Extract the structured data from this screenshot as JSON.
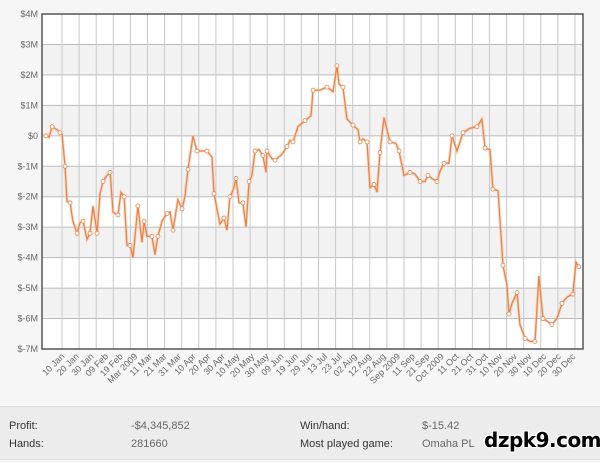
{
  "chart_data": {
    "type": "line",
    "title": "",
    "xlabel": "",
    "ylabel": "",
    "x_units": "date tick index (0 = 10 Jan)",
    "xlim": [
      -1.17,
      30.47
    ],
    "ylim": [
      -7,
      4
    ],
    "y_ticks": [
      {
        "value": 4,
        "label": "$4M"
      },
      {
        "value": 3,
        "label": "$3M"
      },
      {
        "value": 2,
        "label": "$2M"
      },
      {
        "value": 1,
        "label": "$1M"
      },
      {
        "value": 0,
        "label": "$0"
      },
      {
        "value": -1,
        "label": "$-1M"
      },
      {
        "value": -2,
        "label": "$-2M"
      },
      {
        "value": -3,
        "label": "$-3M"
      },
      {
        "value": -4,
        "label": "$-4M"
      },
      {
        "value": -5,
        "label": "$-5M"
      },
      {
        "value": -6,
        "label": "$-6M"
      },
      {
        "value": -7,
        "label": "$-7M"
      }
    ],
    "x_ticks": [
      "10 Jan",
      "20 Jan",
      "30 Jan",
      "09 Feb",
      "19 Feb",
      "Mar 2009",
      "11 Mar",
      "21 Mar",
      "31 Mar",
      "10 Apr",
      "20 Apr",
      "30 Apr",
      "10 May",
      "20 May",
      "30 May",
      "09 Jun",
      "19 Jun",
      "29 Jun",
      "13 Jul",
      "23 Jul",
      "02 Aug",
      "12 Aug",
      "22 Aug",
      "Sep 2009",
      "11 Sep",
      "21 Sep",
      "Oct 2009",
      "11 Oct",
      "21 Oct",
      "31 Oct",
      "10 Nov",
      "20 Nov",
      "30 Nov",
      "10 Dec",
      "20 Dec",
      "30 Dec"
    ],
    "grid": true,
    "series": [
      {
        "name": "Profit ($M)",
        "color": "#e8844a",
        "x": [
          -0.94,
          -0.76,
          -0.58,
          -0.29,
          -0.12,
          0,
          0.18,
          0.29,
          0.47,
          0.64,
          0.88,
          1.05,
          1.23,
          1.46,
          1.64,
          1.81,
          2.05,
          2.22,
          2.4,
          2.63,
          2.81,
          2.98,
          3.27,
          3.45,
          3.63,
          3.8,
          3.98,
          4.15,
          4.44,
          4.68,
          4.8,
          4.97,
          5.26,
          5.44,
          5.61,
          5.85,
          6.14,
          6.32,
          6.49,
          6.78,
          7.02,
          7.19,
          7.37,
          7.66,
          7.89,
          8.07,
          8.48,
          8.77,
          8.89,
          9.24,
          9.47,
          9.65,
          9.82,
          10.0,
          10.18,
          10.35,
          10.58,
          10.76,
          10.94,
          11.11,
          11.29,
          11.52,
          11.75,
          11.93,
          11.99,
          12.28,
          12.46,
          12.87,
          13.16,
          13.33,
          13.51,
          13.8,
          14.21,
          14.56,
          14.68,
          15.09,
          15.5,
          15.85,
          16.08,
          16.2,
          16.43,
          16.67,
          17.02,
          17.31,
          17.43,
          17.6,
          17.84,
          18.01,
          18.25,
          18.42,
          18.6,
          18.83,
          19.18,
          19.53,
          19.71,
          20.0,
          20.35,
          20.64,
          20.94,
          21.23,
          21.4,
          21.64,
          21.93,
          22.11,
          22.34,
          22.63,
          22.81,
          23.1,
          23.45,
          23.86,
          24.27,
          24.56,
          24.74,
          25.03,
          25.2,
          25.5,
          25.79,
          26.02,
          26.14,
          26.32,
          26.61,
          26.78,
          27.08,
          27.37,
          27.66,
          27.89,
          28.13,
          28.42,
          28.65,
          28.95,
          29.24,
          29.53,
          29.88,
          30.06,
          30.23
        ],
        "y": [
          0,
          -0.05,
          0.3,
          0.2,
          0.1,
          0.05,
          -1.0,
          -2.15,
          -2.2,
          -2.8,
          -3.2,
          -2.85,
          -2.8,
          -3.4,
          -3.2,
          -2.3,
          -3.2,
          -1.9,
          -1.5,
          -1.3,
          -1.2,
          -2.5,
          -2.6,
          -1.85,
          -2.0,
          -3.6,
          -3.6,
          -4.0,
          -2.3,
          -3.5,
          -2.8,
          -3.3,
          -3.3,
          -3.9,
          -3.3,
          -2.8,
          -2.55,
          -2.5,
          -3.1,
          -2.1,
          -2.4,
          -2.0,
          -1.1,
          0,
          -0.5,
          -0.5,
          -0.5,
          -0.7,
          -1.9,
          -2.9,
          -2.7,
          -3.1,
          -2.0,
          -1.8,
          -1.4,
          -2.2,
          -2.2,
          -3.0,
          -1.5,
          -1.3,
          -0.5,
          -0.45,
          -0.65,
          -1.2,
          -0.5,
          -0.75,
          -0.8,
          -0.6,
          -0.35,
          -0.15,
          -0.2,
          0.3,
          0.5,
          0.65,
          1.5,
          1.5,
          1.6,
          1.45,
          2.3,
          1.7,
          1.6,
          0.55,
          0.35,
          0.2,
          -0.2,
          -0.1,
          -0.2,
          -1.7,
          -1.6,
          -1.85,
          -0.55,
          0.6,
          -0.2,
          -0.25,
          -0.5,
          -1.3,
          -1.2,
          -1.25,
          -1.5,
          -1.5,
          -1.3,
          -1.4,
          -1.5,
          -1.15,
          -0.9,
          -0.9,
          0,
          -0.5,
          0.1,
          0.25,
          0.3,
          0.55,
          -0.4,
          -0.45,
          -1.75,
          -1.8,
          -4.25,
          -4.9,
          -5.85,
          -5.5,
          -5.15,
          -6.2,
          -6.65,
          -6.75,
          -6.75,
          -4.6,
          -6.0,
          -6.1,
          -6.2,
          -6.0,
          -5.5,
          -5.3,
          -5.2,
          -4.15,
          -4.3
        ]
      }
    ]
  },
  "summary": {
    "profit_label": "Profit:",
    "profit_value": "-$4,345,852",
    "hands_label": "Hands:",
    "hands_value": "281660",
    "winhand_label": "Win/hand:",
    "winhand_value": "$-15.42",
    "game_label": "Most played game:",
    "game_value": "Omaha PL"
  },
  "watermark": "dzpk9.com"
}
